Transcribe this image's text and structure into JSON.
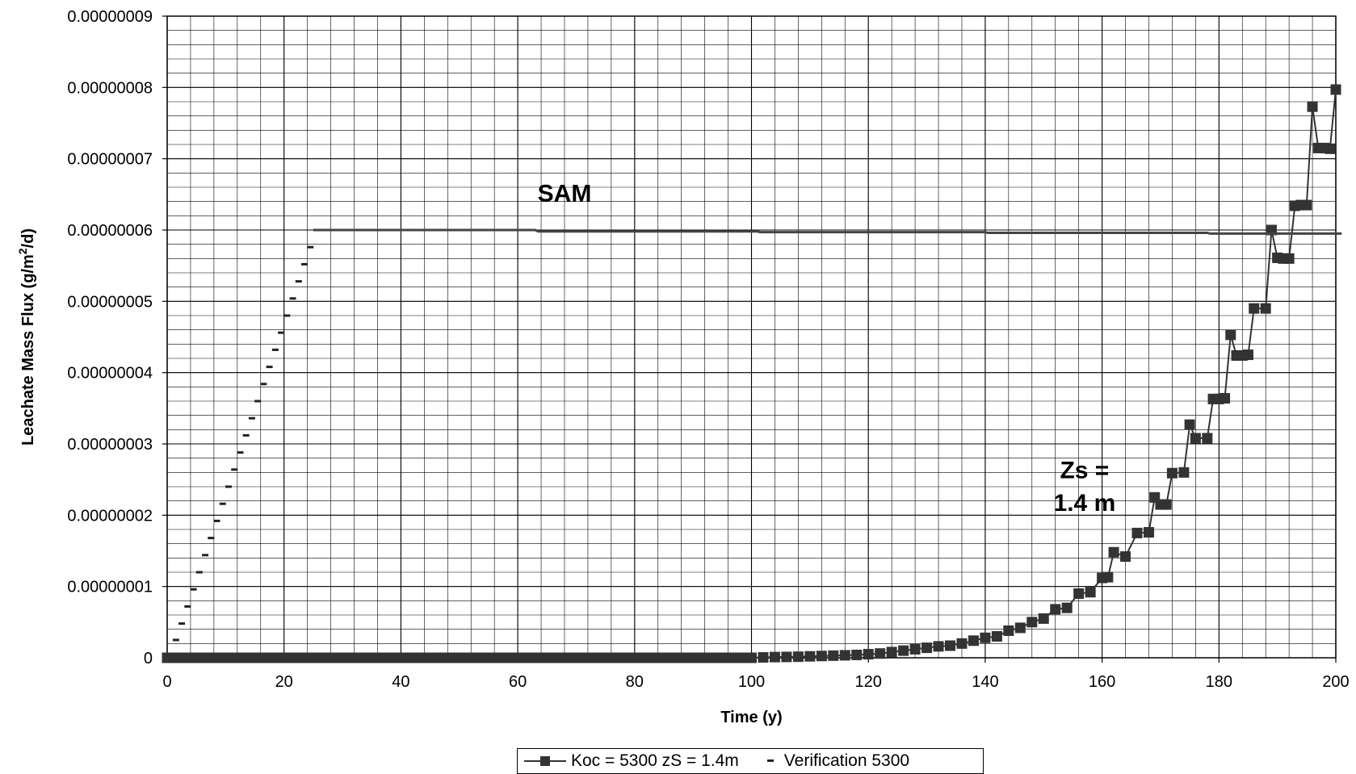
{
  "chart_data": {
    "type": "line",
    "title": "",
    "xlabel": "Time (y)",
    "ylabel_main": "Leachate Mass Flux (g/m",
    "ylabel_sup": "2",
    "ylabel_tail": "/d)",
    "xlim": [
      0,
      200
    ],
    "ylim": [
      0,
      9e-08
    ],
    "x_ticks": [
      0,
      20,
      40,
      60,
      80,
      100,
      120,
      140,
      160,
      180,
      200
    ],
    "y_ticks": [
      0,
      1e-08,
      2e-08,
      3e-08,
      4e-08,
      5e-08,
      6e-08,
      7e-08,
      8e-08,
      9e-08
    ],
    "x_tick_labels": [
      "0",
      "20",
      "40",
      "60",
      "80",
      "100",
      "120",
      "140",
      "160",
      "180",
      "200"
    ],
    "y_tick_labels": [
      "0",
      "0.00000001",
      "0.00000002",
      "0.00000003",
      "0.00000004",
      "0.00000005",
      "0.00000006",
      "0.00000007",
      "0.00000008",
      "0.00000009"
    ],
    "grid": true,
    "legend_position": "bottom-center",
    "annotations": [
      {
        "text": "SAM",
        "x": 68,
        "y": 6.4e-08
      },
      {
        "text": "Zs =",
        "x": 157,
        "y": 2.52e-08
      },
      {
        "text": "1.4 m",
        "x": 157,
        "y": 2.06e-08
      }
    ],
    "series": [
      {
        "name": "Koc = 5300 zS = 1.4m",
        "color": "#333333",
        "marker": "square",
        "x": [
          0,
          20,
          40,
          60,
          80,
          100,
          102,
          104,
          106,
          108,
          110,
          112,
          114,
          116,
          118,
          120,
          122,
          124,
          126,
          128,
          130,
          132,
          134,
          136,
          138,
          140,
          142,
          144,
          146,
          148,
          150,
          152,
          154,
          156,
          158,
          160,
          161,
          162,
          164,
          166,
          168,
          169,
          170,
          171,
          172,
          174,
          175,
          176,
          178,
          179,
          180,
          181,
          182,
          183,
          184,
          185,
          186,
          188,
          189,
          190,
          191,
          192,
          193,
          194,
          195,
          196,
          197,
          198,
          199,
          200
        ],
        "y": [
          0,
          0,
          0,
          0,
          0,
          0,
          5e-11,
          1e-10,
          1.2e-10,
          1.5e-10,
          2e-10,
          2.5e-10,
          3e-10,
          3.5e-10,
          4e-10,
          5e-10,
          6e-10,
          8e-10,
          1e-09,
          1.2e-09,
          1.4e-09,
          1.6e-09,
          1.7e-09,
          2e-09,
          2.4e-09,
          2.8e-09,
          3e-09,
          3.8e-09,
          4.2e-09,
          5e-09,
          5.5e-09,
          6.8e-09,
          7e-09,
          9e-09,
          9.2e-09,
          1.12e-08,
          1.13e-08,
          1.48e-08,
          1.42e-08,
          1.75e-08,
          1.76e-08,
          2.25e-08,
          2.15e-08,
          2.15e-08,
          2.59e-08,
          2.6e-08,
          3.27e-08,
          3.08e-08,
          3.08e-08,
          3.63e-08,
          3.63e-08,
          3.64e-08,
          4.53e-08,
          4.24e-08,
          4.24e-08,
          4.25e-08,
          4.9e-08,
          4.9e-08,
          6e-08,
          5.61e-08,
          5.6e-08,
          5.6e-08,
          6.34e-08,
          6.35e-08,
          6.35e-08,
          7.73e-08,
          7.15e-08,
          7.15e-08,
          7.14e-08,
          7.97e-08
        ]
      },
      {
        "name": "Verification 5300",
        "color": "#222222",
        "marker": "dash",
        "x": [
          1.5,
          2.5,
          3.5,
          4.5,
          5.5,
          6.5,
          7.5,
          8.5,
          9.5,
          10.5,
          11.5,
          12.5,
          13.5,
          14.5,
          15.5,
          16.5,
          17.5,
          18.5,
          19.5,
          20.5,
          21.5,
          22.5,
          23.5,
          24.5
        ],
        "y": [
          2.5e-09,
          4.8e-09,
          7.2e-09,
          9.6e-09,
          1.2e-08,
          1.44e-08,
          1.68e-08,
          1.92e-08,
          2.16e-08,
          2.4e-08,
          2.64e-08,
          2.88e-08,
          3.12e-08,
          3.36e-08,
          3.6e-08,
          3.84e-08,
          4.08e-08,
          4.32e-08,
          4.56e-08,
          4.8e-08,
          5.04e-08,
          5.28e-08,
          5.52e-08,
          5.76e-08
        ]
      },
      {
        "name": "SAM",
        "color": "#444444",
        "marker": "none",
        "x": [
          25,
          63,
          63.5,
          101,
          101.5,
          140,
          140.5,
          178,
          178.5,
          201
        ],
        "y": [
          6e-08,
          6e-08,
          5.98e-08,
          5.98e-08,
          5.97e-08,
          5.97e-08,
          5.96e-08,
          5.96e-08,
          5.95e-08,
          5.95e-08
        ]
      }
    ]
  },
  "legend": {
    "items": [
      {
        "label": "Koc = 5300 zS = 1.4m"
      },
      {
        "label": "Verification 5300"
      }
    ]
  }
}
